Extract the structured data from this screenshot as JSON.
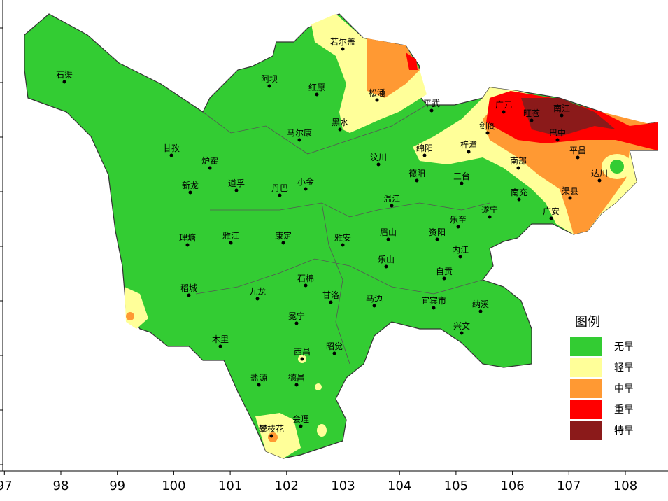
{
  "map": {
    "cities": [
      "石渠",
      "阿坝",
      "红原",
      "若尔盖",
      "松潘",
      "平武",
      "甘孜",
      "炉霍",
      "马尔康",
      "黑水",
      "汶川",
      "绵阳",
      "梓潼",
      "广元",
      "旺苍",
      "南江",
      "剑阁",
      "巴中",
      "平昌",
      "南部",
      "达川",
      "渠县",
      "南充",
      "广安",
      "遂宁",
      "三台",
      "德阳",
      "新龙",
      "道孚",
      "丹巴",
      "小金",
      "温江",
      "理塘",
      "雅江",
      "康定",
      "雅安",
      "眉山",
      "乐至",
      "资阳",
      "内江",
      "乐山",
      "自贡",
      "稻城",
      "九龙",
      "石棉",
      "甘洛",
      "马边",
      "宜宾市",
      "纳溪",
      "兴文",
      "冕宁",
      "木里",
      "西昌",
      "昭觉",
      "盐源",
      "德昌",
      "攀枝花",
      "会理"
    ],
    "legend": {
      "title": "图例",
      "items": [
        {
          "label": "无旱",
          "color": "#33cc33"
        },
        {
          "label": "轻旱",
          "color": "#ffff99"
        },
        {
          "label": "中旱",
          "color": "#ff9933"
        },
        {
          "label": "重旱",
          "color": "#ff0000"
        },
        {
          "label": "特旱",
          "color": "#8b1a1a"
        }
      ]
    },
    "axis": {
      "xticks": [
        97,
        98,
        99,
        100,
        101,
        102,
        103,
        104,
        105,
        106,
        107,
        108
      ]
    }
  }
}
